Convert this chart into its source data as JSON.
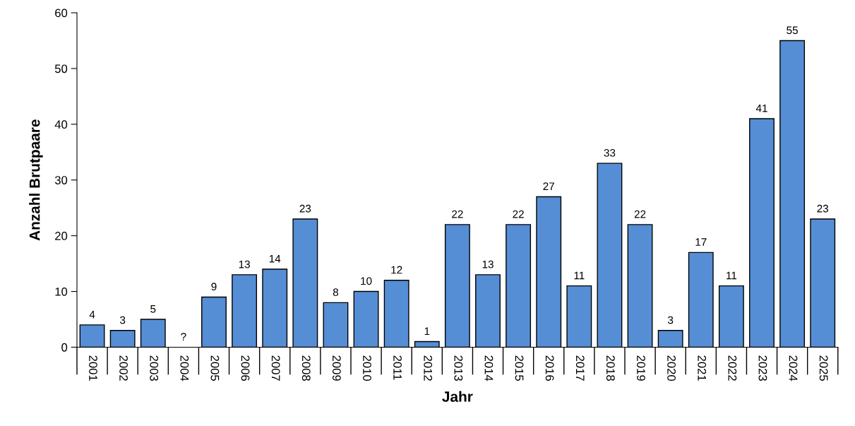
{
  "chart_data": {
    "type": "bar",
    "xlabel": "Jahr",
    "ylabel": "Anzahl Brutpaare",
    "categories": [
      "2001",
      "2002",
      "2003",
      "2004",
      "2005",
      "2006",
      "2007",
      "2008",
      "2009",
      "2010",
      "2011",
      "2012",
      "2013",
      "2014",
      "2015",
      "2016",
      "2017",
      "2018",
      "2019",
      "2020",
      "2021",
      "2022",
      "2023",
      "2024",
      "2025"
    ],
    "values": [
      4,
      3,
      5,
      null,
      9,
      13,
      14,
      23,
      8,
      10,
      12,
      1,
      22,
      13,
      22,
      27,
      11,
      33,
      22,
      3,
      17,
      11,
      41,
      55,
      23
    ],
    "value_labels": [
      "4",
      "3",
      "5",
      "?",
      "9",
      "13",
      "14",
      "23",
      "8",
      "10",
      "12",
      "1",
      "22",
      "13",
      "22",
      "27",
      "11",
      "33",
      "22",
      "3",
      "17",
      "11",
      "41",
      "55",
      "23"
    ],
    "color": "#558ed5",
    "ylim": [
      0,
      60
    ],
    "yticks": [
      0,
      10,
      20,
      30,
      40,
      50,
      60
    ],
    "grid": false,
    "legend": false
  }
}
